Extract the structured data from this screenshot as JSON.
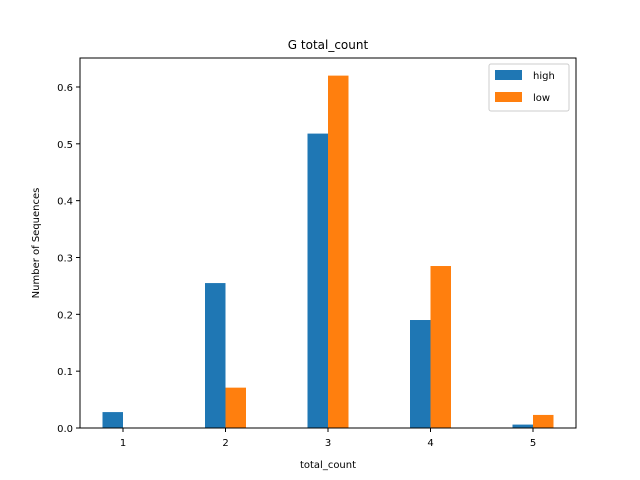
{
  "chart_data": {
    "type": "bar",
    "title": "G total_count",
    "xlabel": "total_count",
    "ylabel": "Number of Sequences",
    "categories": [
      "1",
      "2",
      "3",
      "4",
      "5"
    ],
    "series": [
      {
        "name": "high",
        "color": "#1f77b4",
        "values": [
          0.028,
          0.255,
          0.518,
          0.19,
          0.006
        ]
      },
      {
        "name": "low",
        "color": "#ff7f0e",
        "values": [
          0.0,
          0.071,
          0.62,
          0.285,
          0.023
        ]
      }
    ],
    "ylim": [
      0,
      0.651
    ],
    "yticks": [
      0.0,
      0.1,
      0.2,
      0.3,
      0.4,
      0.5,
      0.6
    ],
    "ytick_labels": [
      "0.0",
      "0.1",
      "0.2",
      "0.3",
      "0.4",
      "0.5",
      "0.6"
    ],
    "legend_position": "top-right",
    "grid": false
  }
}
